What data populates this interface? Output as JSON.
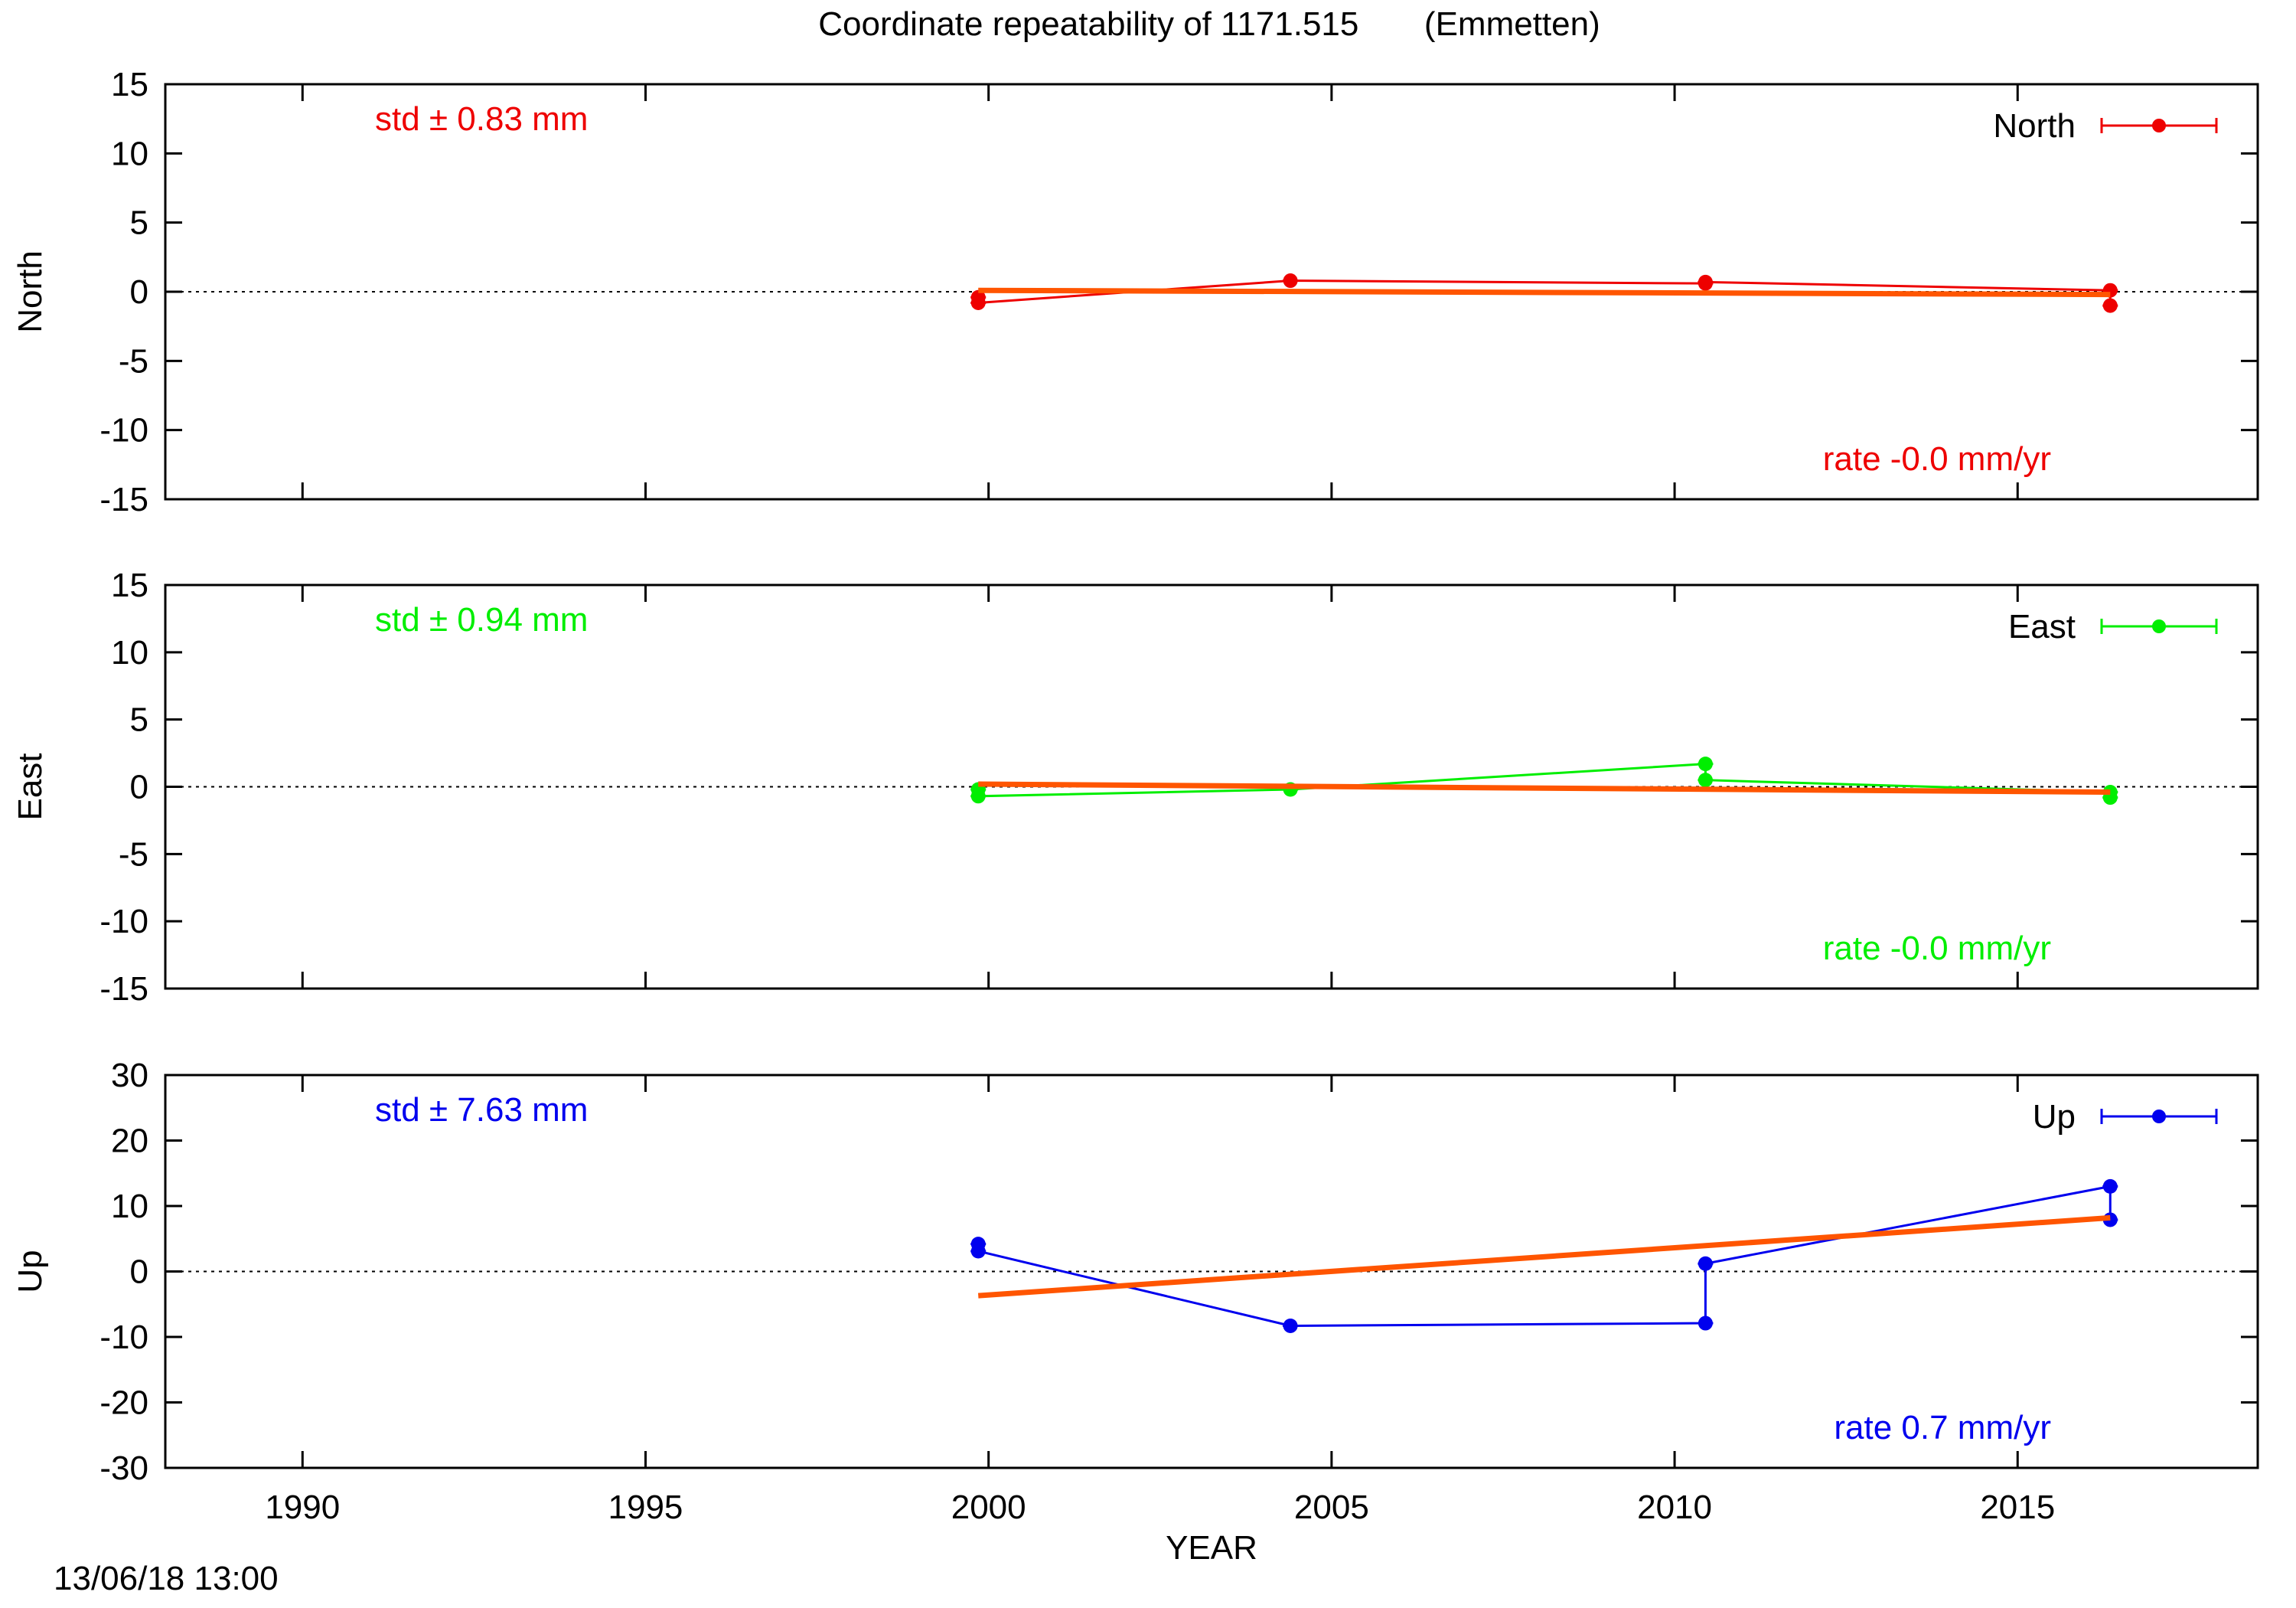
{
  "title": "Coordinate repeatability of 1171.515       (Emmetten)",
  "footer_timestamp": "13/06/18 13:00",
  "chart_data": [
    {
      "type": "line",
      "panel": "north",
      "ylabel": "North",
      "xlabel": "",
      "xlim": [
        1988,
        2018.5
      ],
      "ylim": [
        -15,
        15
      ],
      "yticks": [
        15,
        10,
        5,
        0,
        -5,
        -10,
        -15
      ],
      "legend_label": "North",
      "legend_position": "top-right",
      "std_text": "std ± 0.83 mm",
      "rate_text": "rate -0.0 mm/yr",
      "color": "#ee0000",
      "zero_line": true,
      "series": [
        {
          "x": [
            1999.85,
            1999.85,
            2004.4,
            2010.45,
            2010.45,
            2016.35,
            2016.35
          ],
          "y": [
            -0.4,
            -0.8,
            0.8,
            0.6,
            0.7,
            0.1,
            -1.0
          ]
        }
      ],
      "trend": {
        "x": [
          1999.85,
          2016.35
        ],
        "y": [
          0.1,
          -0.2
        ],
        "color": "#ff5500"
      }
    },
    {
      "type": "line",
      "panel": "east",
      "ylabel": "East",
      "xlabel": "",
      "xlim": [
        1988,
        2018.5
      ],
      "ylim": [
        -15,
        15
      ],
      "yticks": [
        15,
        10,
        5,
        0,
        -5,
        -10,
        -15
      ],
      "legend_label": "East",
      "legend_position": "top-right",
      "std_text": "std ± 0.94 mm",
      "rate_text": "rate -0.0 mm/yr",
      "color": "#00ee00",
      "zero_line": true,
      "series": [
        {
          "x": [
            1999.85,
            1999.85,
            2004.4,
            2010.45,
            2010.45,
            2016.35,
            2016.35
          ],
          "y": [
            -0.2,
            -0.7,
            -0.2,
            1.7,
            0.5,
            -0.4,
            -0.8
          ]
        }
      ],
      "trend": {
        "x": [
          1999.85,
          2016.35
        ],
        "y": [
          0.2,
          -0.4
        ],
        "color": "#ff5500"
      }
    },
    {
      "type": "line",
      "panel": "up",
      "ylabel": "Up",
      "xlabel": "YEAR",
      "xlim": [
        1988,
        2018.5
      ],
      "ylim": [
        -30,
        30
      ],
      "yticks": [
        30,
        20,
        10,
        0,
        -10,
        -20,
        -30
      ],
      "xticks": [
        1990,
        1995,
        2000,
        2005,
        2010,
        2015
      ],
      "legend_label": "Up",
      "legend_position": "top-right",
      "std_text": "std ± 7.63 mm",
      "rate_text": "rate  0.7 mm/yr",
      "color": "#0000ee",
      "zero_line": true,
      "series": [
        {
          "x": [
            1999.85,
            1999.85,
            2004.4,
            2010.45,
            2010.45,
            2016.35,
            2016.35
          ],
          "y": [
            4.2,
            3.1,
            -8.3,
            -7.9,
            1.2,
            13.0,
            7.9
          ]
        }
      ],
      "trend": {
        "x": [
          1999.85,
          2016.35
        ],
        "y": [
          -3.7,
          8.2
        ],
        "color": "#ff5500"
      }
    }
  ]
}
